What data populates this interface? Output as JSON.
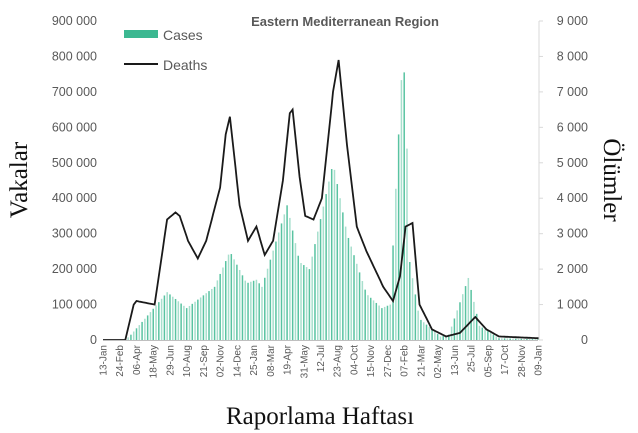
{
  "chart_data": {
    "type": "bar+line",
    "title": "Eastern Mediterranean Region",
    "xlabel": "Raporlama Haftası",
    "ylabel": "Vakalar",
    "y2label": "Ölümler",
    "ylim": [
      0,
      900000
    ],
    "y2lim": [
      0,
      9000
    ],
    "y_ticks": [
      "0",
      "100 000",
      "200 000",
      "300 000",
      "400 000",
      "500 000",
      "600 000",
      "700 000",
      "800 000",
      "900 000"
    ],
    "y2_ticks": [
      "0",
      "1 000",
      "2 000",
      "3 000",
      "4 000",
      "5 000",
      "6 000",
      "7 000",
      "8 000",
      "9 000"
    ],
    "x_ticks": [
      "13-Jan",
      "24-Feb",
      "06-Apr",
      "18-May",
      "29-Jun",
      "10-Aug",
      "21-Sep",
      "02-Nov",
      "14-Dec",
      "25-Jan",
      "08-Mar",
      "19-Apr",
      "31-May",
      "12-Jul",
      "23-Aug",
      "04-Oct",
      "15-Nov",
      "27-Dec",
      "07-Feb",
      "21-Mar",
      "02-May",
      "13-Jun",
      "25-Jul",
      "05-Sep",
      "17-Oct",
      "28-Nov",
      "09-Jan"
    ],
    "weeks_between_ticks": 6,
    "n_weeks": 157,
    "legend": {
      "position": "top-left",
      "entries": [
        "Cases",
        "Deaths"
      ]
    },
    "series": [
      {
        "name": "Cases",
        "type": "bar",
        "axis": "left",
        "color": "#3cb891",
        "keypoints_week": [
          0,
          8,
          10,
          15,
          23,
          30,
          40,
          45.5,
          51.5,
          55,
          57,
          66,
          70.5,
          74,
          82.5,
          87.5,
          94.5,
          100,
          103,
          104.5,
          107.5,
          108.5,
          110,
          113.5,
          121,
          124,
          131,
          135,
          142,
          156
        ],
        "keypoints_value": [
          0,
          0,
          15000,
          60000,
          135000,
          90000,
          150000,
          250000,
          160000,
          170000,
          150000,
          380000,
          220000,
          200000,
          500000,
          300000,
          130000,
          90000,
          100000,
          350000,
          810000,
          700000,
          220000,
          60000,
          10000,
          15000,
          175000,
          40000,
          5000,
          2000
        ]
      },
      {
        "name": "Deaths",
        "type": "line",
        "axis": "right",
        "color": "#1a1a1a",
        "keypoints_week": [
          0,
          8,
          11,
          12,
          18.5,
          23,
          26,
          27.5,
          30.5,
          34,
          37,
          42,
          44,
          45.5,
          49,
          52,
          55,
          58,
          61,
          64.5,
          67,
          68,
          70.5,
          72.5,
          75.5,
          78.5,
          82.5,
          84.5,
          87.5,
          91,
          94.5,
          100.5,
          104,
          106.5,
          108.5,
          111,
          113.5,
          118,
          123,
          128,
          133.5,
          137.5,
          142,
          156
        ],
        "keypoints_value": [
          0,
          0,
          1000,
          1100,
          1000,
          3400,
          3600,
          3500,
          2800,
          2300,
          2800,
          4300,
          5800,
          6300,
          3800,
          2800,
          3200,
          2400,
          2800,
          4500,
          6400,
          6500,
          4600,
          3500,
          3400,
          4000,
          7000,
          7900,
          5500,
          3200,
          2500,
          1500,
          1100,
          1800,
          3200,
          3300,
          1000,
          300,
          100,
          200,
          650,
          300,
          100,
          50
        ]
      }
    ]
  }
}
